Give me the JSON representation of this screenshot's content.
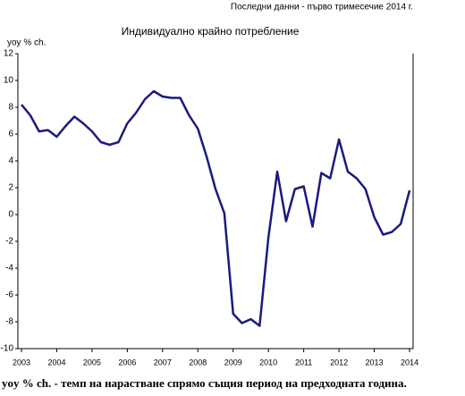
{
  "chart_data": {
    "type": "line",
    "note": "Последни данни - първо тримесечие 2014 г.",
    "title": "Индивидуално крайно потребление",
    "y_label": "yoy % ch.",
    "footnote": "yoy % ch. - темп на нарастване спрямо същия период на предходната година.",
    "categories": [
      "2003",
      null,
      null,
      null,
      "2004",
      null,
      null,
      null,
      "2005",
      null,
      null,
      null,
      "2006",
      null,
      null,
      null,
      "2007",
      null,
      null,
      null,
      "2008",
      null,
      null,
      null,
      "2009",
      null,
      null,
      null,
      "2010",
      null,
      null,
      null,
      "2011",
      null,
      null,
      null,
      "2012",
      null,
      null,
      null,
      "2013",
      null,
      null,
      null,
      "2014"
    ],
    "color": "#1a1a80",
    "values": [
      8.2,
      7.4,
      6.2,
      6.3,
      5.8,
      6.6,
      7.3,
      6.8,
      6.2,
      5.4,
      5.2,
      5.4,
      6.8,
      7.6,
      8.6,
      9.2,
      8.8,
      8.7,
      8.7,
      7.4,
      6.4,
      4.3,
      1.9,
      0.1,
      -7.4,
      -8.1,
      -7.8,
      -8.3,
      -1.7,
      3.2,
      -0.5,
      1.9,
      2.1,
      -0.9,
      3.1,
      2.7,
      5.6,
      3.2,
      2.7,
      1.9,
      -0.2,
      -1.5,
      -1.3,
      -0.7,
      1.8
    ],
    "ylim": [
      -10,
      12
    ],
    "yticks": [
      -10,
      -8,
      -6,
      -4,
      -2,
      0,
      2,
      4,
      6,
      8,
      10,
      12
    ],
    "grid": false
  }
}
